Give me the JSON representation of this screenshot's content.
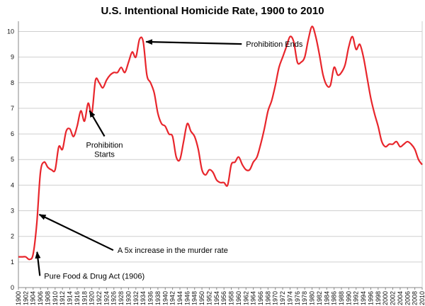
{
  "chart_data": {
    "type": "line",
    "title": "U.S. Intentional Homicide Rate, 1900 to 2010",
    "xlabel": "",
    "ylabel": "",
    "xlim": [
      1900,
      2010
    ],
    "ylim": [
      0,
      10.4
    ],
    "grid": true,
    "legend": "none",
    "x_ticks": [
      1900,
      1902,
      1904,
      1906,
      1908,
      1910,
      1912,
      1914,
      1916,
      1918,
      1920,
      1922,
      1924,
      1926,
      1928,
      1930,
      1932,
      1934,
      1936,
      1938,
      1940,
      1942,
      1944,
      1946,
      1948,
      1950,
      1952,
      1954,
      1956,
      1958,
      1960,
      1962,
      1964,
      1966,
      1968,
      1970,
      1972,
      1974,
      1976,
      1978,
      1980,
      1982,
      1984,
      1986,
      1988,
      1990,
      1992,
      1994,
      1996,
      1998,
      2000,
      2002,
      2004,
      2006,
      2008,
      2010
    ],
    "y_ticks": [
      0,
      1,
      2,
      3,
      4,
      5,
      6,
      7,
      8,
      9,
      10
    ],
    "series_color": "#e8262c",
    "series": [
      {
        "name": "",
        "x": [
          1900,
          1901,
          1902,
          1903,
          1904,
          1905,
          1906,
          1907,
          1908,
          1909,
          1910,
          1911,
          1912,
          1913,
          1914,
          1915,
          1916,
          1917,
          1918,
          1919,
          1920,
          1921,
          1922,
          1923,
          1924,
          1925,
          1926,
          1927,
          1928,
          1929,
          1930,
          1931,
          1932,
          1933,
          1934,
          1935,
          1936,
          1937,
          1938,
          1939,
          1940,
          1941,
          1942,
          1943,
          1944,
          1945,
          1946,
          1947,
          1948,
          1949,
          1950,
          1951,
          1952,
          1953,
          1954,
          1955,
          1956,
          1957,
          1958,
          1959,
          1960,
          1961,
          1962,
          1963,
          1964,
          1965,
          1966,
          1967,
          1968,
          1969,
          1970,
          1971,
          1972,
          1973,
          1974,
          1975,
          1976,
          1977,
          1978,
          1979,
          1980,
          1981,
          1982,
          1983,
          1984,
          1985,
          1986,
          1987,
          1988,
          1989,
          1990,
          1991,
          1992,
          1993,
          1994,
          1995,
          1996,
          1997,
          1998,
          1999,
          2000,
          2001,
          2002,
          2003,
          2004,
          2005,
          2006,
          2007,
          2008,
          2009,
          2010
        ],
        "y": [
          1.2,
          1.2,
          1.2,
          1.1,
          1.3,
          2.5,
          4.5,
          4.9,
          4.7,
          4.6,
          4.6,
          5.5,
          5.4,
          6.1,
          6.2,
          5.9,
          6.3,
          6.9,
          6.5,
          7.2,
          6.8,
          8.1,
          8.0,
          7.8,
          8.1,
          8.3,
          8.4,
          8.4,
          8.6,
          8.4,
          8.8,
          9.2,
          9.0,
          9.7,
          9.6,
          8.3,
          8.0,
          7.6,
          6.8,
          6.4,
          6.3,
          6.0,
          5.9,
          5.1,
          5.0,
          5.7,
          6.4,
          6.1,
          5.9,
          5.4,
          4.6,
          4.4,
          4.6,
          4.5,
          4.2,
          4.1,
          4.1,
          4.0,
          4.8,
          4.9,
          5.1,
          4.8,
          4.6,
          4.6,
          4.9,
          5.1,
          5.6,
          6.2,
          6.9,
          7.3,
          7.9,
          8.6,
          9.0,
          9.4,
          9.8,
          9.6,
          8.8,
          8.8,
          9.0,
          9.7,
          10.2,
          9.8,
          9.1,
          8.3,
          7.9,
          7.9,
          8.6,
          8.3,
          8.4,
          8.7,
          9.4,
          9.8,
          9.3,
          9.5,
          9.0,
          8.2,
          7.4,
          6.8,
          6.3,
          5.7,
          5.5,
          5.6,
          5.6,
          5.7,
          5.5,
          5.6,
          5.7,
          5.6,
          5.4,
          5.0,
          4.8
        ]
      }
    ],
    "annotations": [
      {
        "text": "Prohibition Ends",
        "x": 1934,
        "y": 9.6,
        "text_x": 1962,
        "text_y": 9.4
      },
      {
        "text": "Prohibition Starts",
        "lines": [
          "Prohibition",
          "Starts"
        ],
        "x": 1919,
        "y": 7.0,
        "text_x": 1925,
        "text_y": 5.3
      },
      {
        "text": "A 5x increase in the murder rate",
        "x": 1905,
        "y": 2.9,
        "text_x": 1927,
        "text_y": 1.35
      },
      {
        "text": "Pure Food & Drug Act (1906)",
        "x": 1905,
        "y": 1.5,
        "text_x": 1907,
        "text_y": 0.35
      }
    ]
  }
}
